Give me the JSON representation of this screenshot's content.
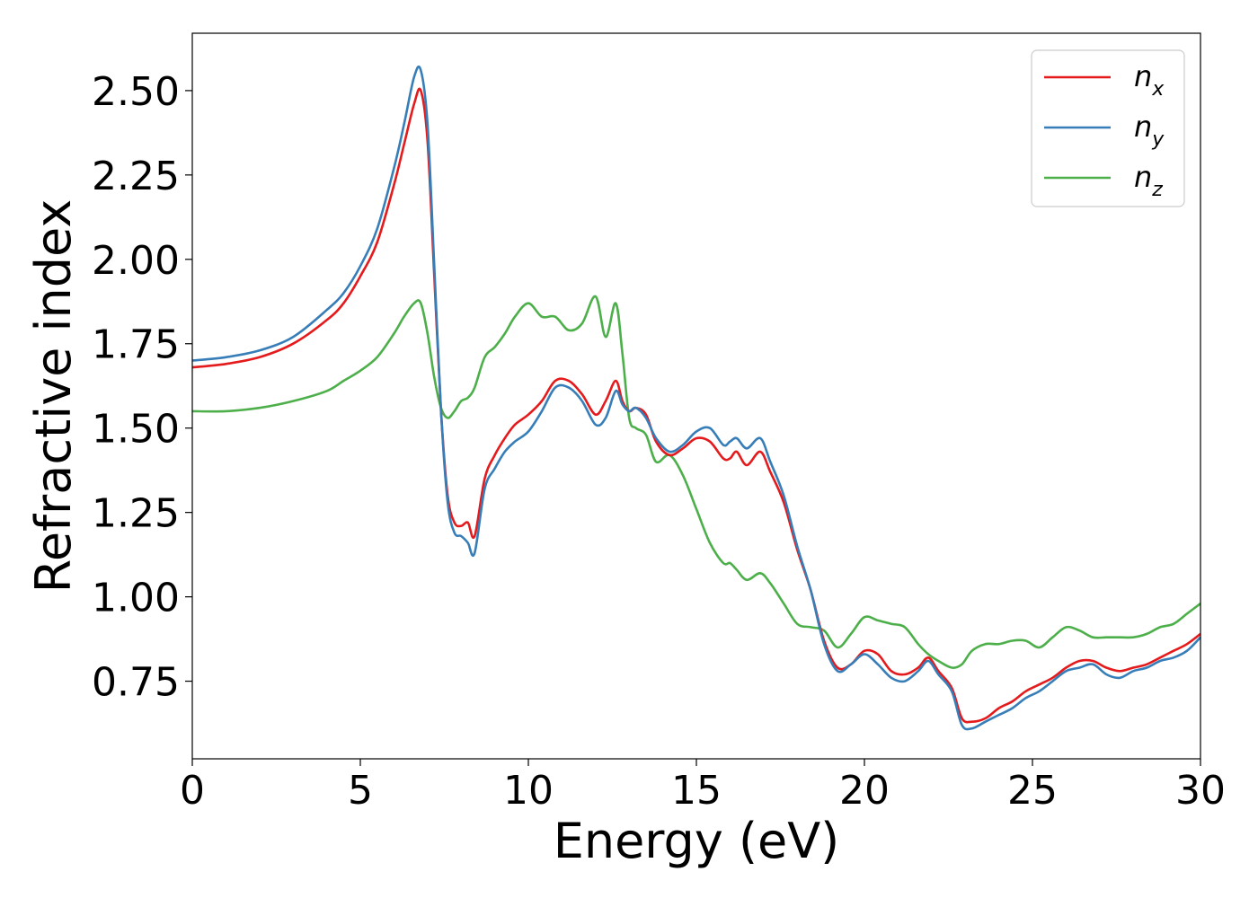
{
  "chart_data": {
    "type": "line",
    "xlabel": "Energy (eV)",
    "ylabel": "Refractive index",
    "xlim": [
      0,
      30
    ],
    "ylim": [
      0.52,
      2.67
    ],
    "xticks": [
      "0",
      "5",
      "10",
      "15",
      "20",
      "25",
      "30"
    ],
    "yticks": [
      "0.75",
      "1.00",
      "1.25",
      "1.50",
      "1.75",
      "2.00",
      "2.25",
      "2.50"
    ],
    "grid": false,
    "legend_position": "top-right",
    "series": [
      {
        "name": "n",
        "subscript": "x",
        "color": "#e41a1c",
        "x": [
          0,
          1,
          2,
          3,
          4,
          4.5,
          5,
          5.5,
          6,
          6.3,
          6.6,
          6.8,
          7.0,
          7.2,
          7.4,
          7.6,
          7.8,
          8.0,
          8.2,
          8.4,
          8.7,
          9.0,
          9.3,
          9.6,
          10.0,
          10.4,
          10.8,
          11.2,
          11.6,
          12.0,
          12.3,
          12.6,
          12.8,
          13.0,
          13.2,
          13.5,
          13.8,
          14.2,
          14.6,
          15.0,
          15.4,
          15.8,
          16.0,
          16.2,
          16.5,
          16.9,
          17.2,
          17.6,
          18.0,
          18.4,
          18.8,
          19.2,
          19.6,
          20.0,
          20.4,
          20.8,
          21.2,
          21.6,
          21.9,
          22.2,
          22.6,
          22.9,
          23.2,
          23.6,
          24.0,
          24.4,
          24.8,
          25.2,
          25.6,
          26.0,
          26.4,
          26.8,
          27.2,
          27.6,
          28.0,
          28.4,
          28.8,
          29.2,
          29.6,
          30.0
        ],
        "y": [
          1.68,
          1.69,
          1.71,
          1.75,
          1.82,
          1.87,
          1.95,
          2.05,
          2.22,
          2.34,
          2.46,
          2.5,
          2.35,
          1.95,
          1.55,
          1.3,
          1.22,
          1.21,
          1.22,
          1.18,
          1.35,
          1.42,
          1.47,
          1.51,
          1.54,
          1.58,
          1.64,
          1.64,
          1.6,
          1.54,
          1.58,
          1.64,
          1.58,
          1.55,
          1.56,
          1.54,
          1.46,
          1.42,
          1.44,
          1.47,
          1.46,
          1.41,
          1.41,
          1.43,
          1.39,
          1.43,
          1.37,
          1.28,
          1.14,
          1.02,
          0.87,
          0.79,
          0.8,
          0.84,
          0.83,
          0.78,
          0.77,
          0.79,
          0.82,
          0.78,
          0.73,
          0.64,
          0.63,
          0.64,
          0.67,
          0.69,
          0.72,
          0.74,
          0.76,
          0.79,
          0.81,
          0.81,
          0.79,
          0.78,
          0.79,
          0.8,
          0.82,
          0.84,
          0.86,
          0.89
        ]
      },
      {
        "name": "n",
        "subscript": "y",
        "color": "#377eb8",
        "x": [
          0,
          1,
          2,
          3,
          4,
          4.5,
          5,
          5.5,
          6,
          6.3,
          6.6,
          6.8,
          7.0,
          7.2,
          7.4,
          7.6,
          7.8,
          8.0,
          8.2,
          8.4,
          8.7,
          9.0,
          9.3,
          9.6,
          10.0,
          10.4,
          10.8,
          11.2,
          11.6,
          12.0,
          12.3,
          12.6,
          12.8,
          13.0,
          13.2,
          13.5,
          13.8,
          14.2,
          14.6,
          15.0,
          15.4,
          15.8,
          16.0,
          16.2,
          16.5,
          16.9,
          17.2,
          17.6,
          18.0,
          18.4,
          18.8,
          19.2,
          19.6,
          20.0,
          20.4,
          20.8,
          21.2,
          21.6,
          21.9,
          22.2,
          22.6,
          22.9,
          23.2,
          23.6,
          24.0,
          24.4,
          24.8,
          25.2,
          25.6,
          26.0,
          26.4,
          26.8,
          27.2,
          27.6,
          28.0,
          28.4,
          28.8,
          29.2,
          29.6,
          30.0
        ],
        "y": [
          1.7,
          1.71,
          1.73,
          1.77,
          1.85,
          1.9,
          1.98,
          2.09,
          2.27,
          2.4,
          2.54,
          2.56,
          2.4,
          1.98,
          1.55,
          1.28,
          1.19,
          1.18,
          1.16,
          1.13,
          1.32,
          1.38,
          1.43,
          1.46,
          1.49,
          1.55,
          1.62,
          1.62,
          1.58,
          1.51,
          1.53,
          1.61,
          1.57,
          1.55,
          1.56,
          1.53,
          1.47,
          1.43,
          1.45,
          1.49,
          1.5,
          1.45,
          1.46,
          1.47,
          1.44,
          1.47,
          1.4,
          1.3,
          1.15,
          1.02,
          0.86,
          0.78,
          0.8,
          0.83,
          0.8,
          0.76,
          0.75,
          0.78,
          0.81,
          0.77,
          0.72,
          0.62,
          0.61,
          0.63,
          0.65,
          0.67,
          0.7,
          0.72,
          0.75,
          0.78,
          0.79,
          0.8,
          0.77,
          0.76,
          0.78,
          0.79,
          0.81,
          0.82,
          0.84,
          0.88
        ]
      },
      {
        "name": "n",
        "subscript": "z",
        "color": "#4daf4a",
        "x": [
          0,
          1,
          2,
          3,
          4,
          4.5,
          5,
          5.5,
          6,
          6.3,
          6.6,
          6.8,
          7.0,
          7.2,
          7.4,
          7.6,
          7.8,
          8.0,
          8.2,
          8.4,
          8.7,
          9.0,
          9.3,
          9.6,
          10.0,
          10.4,
          10.8,
          11.2,
          11.6,
          12.0,
          12.3,
          12.6,
          12.8,
          13.0,
          13.2,
          13.5,
          13.8,
          14.2,
          14.6,
          15.0,
          15.4,
          15.8,
          16.0,
          16.2,
          16.5,
          16.9,
          17.2,
          17.6,
          18.0,
          18.4,
          18.8,
          19.2,
          19.6,
          20.0,
          20.4,
          20.8,
          21.2,
          21.6,
          21.9,
          22.2,
          22.6,
          22.9,
          23.2,
          23.6,
          24.0,
          24.4,
          24.8,
          25.2,
          25.6,
          26.0,
          26.4,
          26.8,
          27.2,
          27.6,
          28.0,
          28.4,
          28.8,
          29.2,
          29.6,
          30.0
        ],
        "y": [
          1.55,
          1.55,
          1.56,
          1.58,
          1.61,
          1.64,
          1.67,
          1.71,
          1.78,
          1.83,
          1.87,
          1.87,
          1.78,
          1.65,
          1.56,
          1.53,
          1.55,
          1.58,
          1.59,
          1.62,
          1.71,
          1.74,
          1.78,
          1.83,
          1.87,
          1.83,
          1.83,
          1.79,
          1.81,
          1.89,
          1.77,
          1.87,
          1.72,
          1.53,
          1.5,
          1.48,
          1.4,
          1.42,
          1.36,
          1.26,
          1.16,
          1.1,
          1.1,
          1.08,
          1.05,
          1.07,
          1.04,
          0.98,
          0.92,
          0.91,
          0.9,
          0.85,
          0.89,
          0.94,
          0.93,
          0.92,
          0.91,
          0.86,
          0.83,
          0.81,
          0.79,
          0.8,
          0.84,
          0.86,
          0.86,
          0.87,
          0.87,
          0.85,
          0.88,
          0.91,
          0.9,
          0.88,
          0.88,
          0.88,
          0.88,
          0.89,
          0.91,
          0.92,
          0.95,
          0.98
        ]
      }
    ]
  }
}
